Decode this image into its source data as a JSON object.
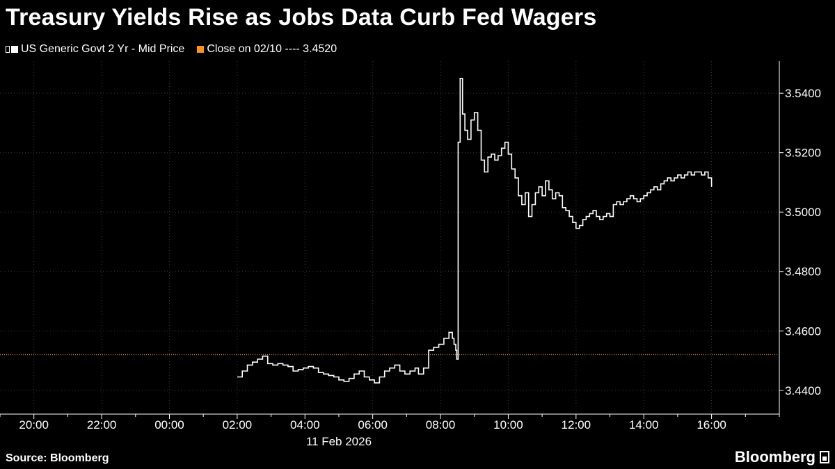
{
  "title": "Treasury Yields Rise as Jobs Data Curb Fed Wagers",
  "legend": {
    "series_label": "US Generic Govt 2 Yr - Mid Price",
    "series_color": "#ffffff",
    "ref_label": "Close on 02/10 ---- 3.4520",
    "ref_color": "#f7941d"
  },
  "footer": {
    "source": "Source: Bloomberg",
    "brand": "Bloomberg"
  },
  "chart_data": {
    "type": "line",
    "x_unit": "hours relative to 00:00, 11 Feb 2026",
    "xlim": [
      -5,
      18
    ],
    "ylim": [
      3.432,
      3.5508
    ],
    "x_ticks": [
      -4,
      -2,
      0,
      2,
      4,
      6,
      8,
      10,
      12,
      14,
      16
    ],
    "x_tick_labels": [
      "20:00",
      "22:00",
      "00:00",
      "02:00",
      "04:00",
      "06:00",
      "08:00",
      "10:00",
      "12:00",
      "14:00",
      "16:00"
    ],
    "date_label": "11 Feb 2026",
    "y_ticks": [
      3.44,
      3.46,
      3.48,
      3.5,
      3.52,
      3.54
    ],
    "y_tick_labels": [
      "3.4400",
      "3.4600",
      "3.4800",
      "3.5000",
      "3.5200",
      "3.5400"
    ],
    "grid": true,
    "reference_line": {
      "value": 3.452,
      "label": "Close on 02/10",
      "color": "#f7941d"
    },
    "series": [
      {
        "name": "US Generic Govt 2 Yr - Mid Price",
        "color": "#ffffff",
        "x": [
          2.0,
          2.15,
          2.3,
          2.45,
          2.6,
          2.75,
          2.9,
          3.05,
          3.2,
          3.35,
          3.5,
          3.65,
          3.8,
          3.95,
          4.1,
          4.25,
          4.4,
          4.55,
          4.7,
          4.85,
          5.0,
          5.15,
          5.3,
          5.45,
          5.6,
          5.75,
          5.9,
          6.05,
          6.2,
          6.35,
          6.5,
          6.65,
          6.8,
          6.95,
          7.1,
          7.25,
          7.35,
          7.5,
          7.65,
          7.8,
          7.95,
          8.1,
          8.25,
          8.35,
          8.4,
          8.45,
          8.48,
          8.52,
          8.58,
          8.65,
          8.72,
          8.8,
          8.9,
          9.0,
          9.1,
          9.2,
          9.3,
          9.4,
          9.5,
          9.6,
          9.7,
          9.8,
          9.9,
          10.0,
          10.1,
          10.2,
          10.3,
          10.4,
          10.5,
          10.6,
          10.7,
          10.8,
          10.9,
          11.0,
          11.1,
          11.2,
          11.3,
          11.4,
          11.5,
          11.6,
          11.7,
          11.8,
          11.9,
          12.0,
          12.1,
          12.2,
          12.3,
          12.4,
          12.5,
          12.6,
          12.7,
          12.8,
          12.9,
          13.0,
          13.1,
          13.2,
          13.3,
          13.4,
          13.5,
          13.6,
          13.7,
          13.8,
          13.9,
          14.0,
          14.1,
          14.2,
          14.3,
          14.4,
          14.5,
          14.6,
          14.7,
          14.8,
          14.9,
          15.0,
          15.1,
          15.2,
          15.3,
          15.4,
          15.5,
          15.6,
          15.7,
          15.8,
          15.9,
          16.0
        ],
        "values": [
          3.4445,
          3.4465,
          3.4485,
          3.4495,
          3.4505,
          3.4515,
          3.449,
          3.4485,
          3.449,
          3.4485,
          3.448,
          3.4465,
          3.447,
          3.4475,
          3.448,
          3.4475,
          3.446,
          3.4455,
          3.445,
          3.4445,
          3.4435,
          3.443,
          3.444,
          3.4455,
          3.4465,
          3.4445,
          3.4435,
          3.4425,
          3.4445,
          3.4465,
          3.4475,
          3.4485,
          3.4465,
          3.4455,
          3.4465,
          3.4475,
          3.4455,
          3.4475,
          3.4535,
          3.4545,
          3.4555,
          3.4575,
          3.4595,
          3.4575,
          3.4555,
          3.4535,
          3.4505,
          3.5235,
          3.545,
          3.533,
          3.5275,
          3.5245,
          3.531,
          3.5335,
          3.5275,
          3.5175,
          3.5135,
          3.5185,
          3.5195,
          3.5175,
          3.519,
          3.5215,
          3.5235,
          3.5195,
          3.5145,
          3.5115,
          3.5055,
          3.5025,
          3.5065,
          3.4985,
          3.5025,
          3.5065,
          3.5085,
          3.5055,
          3.5105,
          3.5075,
          3.5045,
          3.5065,
          3.5055,
          3.5015,
          3.5005,
          3.4985,
          3.4965,
          3.4945,
          3.4955,
          3.4975,
          3.4985,
          3.4995,
          3.5005,
          3.4985,
          3.4975,
          3.4985,
          3.4995,
          3.4985,
          3.5025,
          3.5035,
          3.5025,
          3.5035,
          3.5045,
          3.5055,
          3.5045,
          3.5035,
          3.5045,
          3.5055,
          3.5065,
          3.5075,
          3.5085,
          3.5075,
          3.5095,
          3.5105,
          3.5115,
          3.5105,
          3.5115,
          3.5125,
          3.5115,
          3.5125,
          3.5135,
          3.5125,
          3.5135,
          3.5135,
          3.5125,
          3.5135,
          3.5115,
          3.5085
        ]
      }
    ]
  }
}
